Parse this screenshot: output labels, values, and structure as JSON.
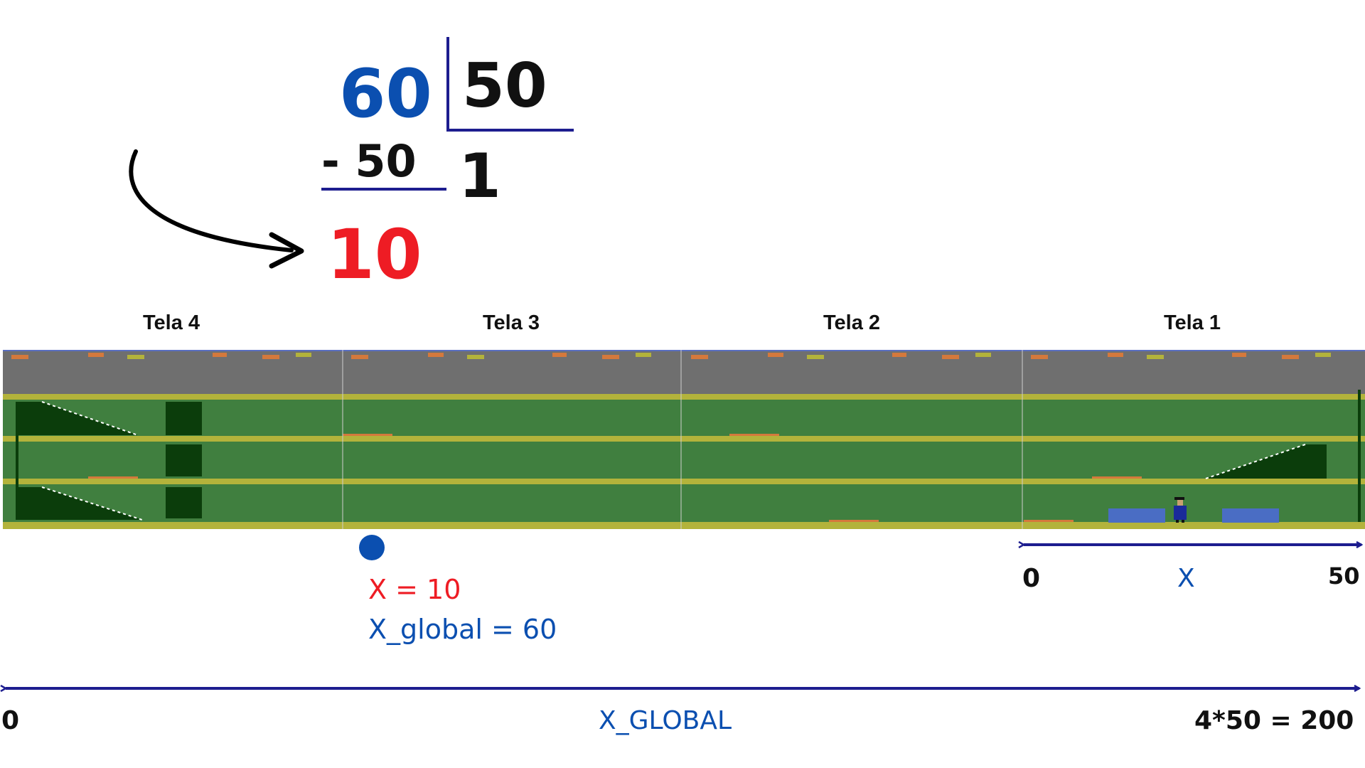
{
  "colors": {
    "blue": "#0b4fb0",
    "red": "#ee1c24",
    "black": "#111111",
    "navy": "#1d1d8f",
    "road": "#6f6f6f",
    "grass": "#407f3f",
    "stripe": "#b3b33b",
    "dark_green": "#0b3d0b",
    "crate": "#4a6dc4",
    "orange": "#d4793c"
  },
  "division": {
    "dividend": "60",
    "divisor": "50",
    "subtrahend": "- 50",
    "quotient": "1",
    "remainder": "10"
  },
  "screens": [
    {
      "label": "Tela 4"
    },
    {
      "label": "Tela 3"
    },
    {
      "label": "Tela 2"
    },
    {
      "label": "Tela 1"
    }
  ],
  "marker": {
    "x_label": "X = 10",
    "x_global_label": "X_global = 60",
    "x_global_value": 60
  },
  "local_axis": {
    "start": "0",
    "label": "X",
    "end": "50"
  },
  "global_axis": {
    "start": "0",
    "label": "X_GLOBAL",
    "end": "4*50 = 200"
  }
}
